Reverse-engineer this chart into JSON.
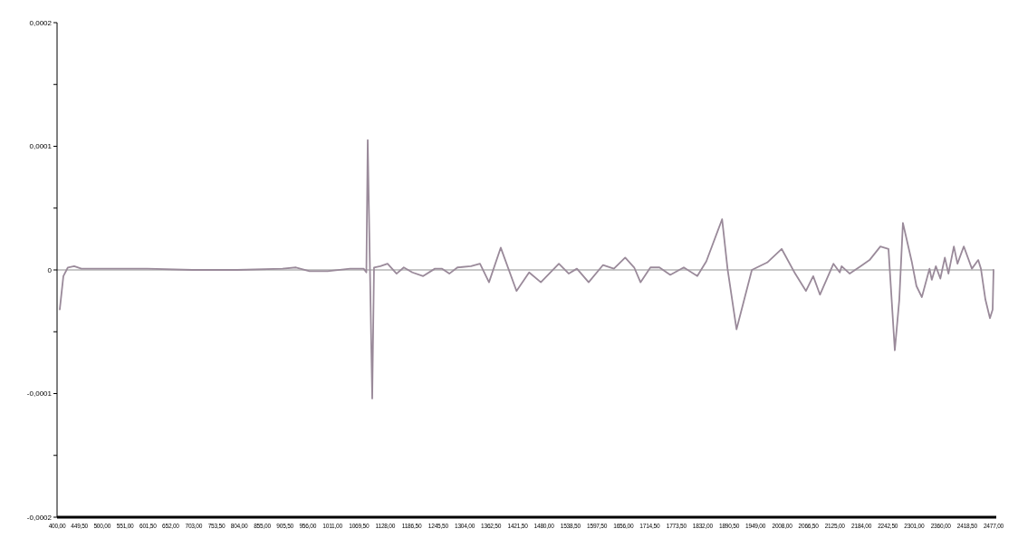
{
  "chart_data": {
    "type": "line",
    "x": [
      406,
      414,
      424,
      438,
      454,
      500,
      515,
      600,
      700,
      800,
      900,
      930,
      960,
      1000,
      1050,
      1080,
      1086,
      1089,
      1094,
      1099,
      1103,
      1117,
      1133,
      1153,
      1169,
      1188,
      1212,
      1238,
      1254,
      1270,
      1288,
      1318,
      1338,
      1358,
      1384,
      1419,
      1447,
      1473,
      1513,
      1535,
      1553,
      1579,
      1611,
      1635,
      1660,
      1680,
      1694,
      1716,
      1736,
      1760,
      1790,
      1820,
      1840,
      1875,
      1887,
      1907,
      1941,
      1975,
      2007,
      2037,
      2061,
      2077,
      2092,
      2122,
      2136,
      2140,
      2158,
      2182,
      2202,
      2226,
      2244,
      2258,
      2268,
      2276,
      2296,
      2306,
      2318,
      2335,
      2340,
      2349,
      2359,
      2369,
      2377,
      2389,
      2397,
      2411,
      2429,
      2443,
      2449,
      2459,
      2469,
      2475,
      2477
    ],
    "series": [
      {
        "color": "#9a8a9a",
        "values": [
          -3.2e-05,
          -5e-06,
          2e-06,
          3e-06,
          1e-06,
          1e-06,
          1e-06,
          1e-06,
          0,
          0,
          1e-06,
          2e-06,
          -1e-06,
          -1e-06,
          1e-06,
          1e-06,
          -2e-06,
          0.000105,
          0,
          -0.000104,
          2e-06,
          3e-06,
          5e-06,
          -3e-06,
          2e-06,
          -2e-06,
          -5e-06,
          1e-06,
          1e-06,
          -3e-06,
          2e-06,
          3e-06,
          5e-06,
          -1e-05,
          1.8e-05,
          -1.7e-05,
          -2e-06,
          -1e-05,
          5e-06,
          -3e-06,
          1e-06,
          -1e-05,
          4e-06,
          1e-06,
          1e-05,
          2e-06,
          -1e-05,
          2e-06,
          2e-06,
          -4e-06,
          2e-06,
          -5e-06,
          7e-06,
          4.1e-05,
          1e-06,
          -4.8e-05,
          0,
          6e-06,
          1.7e-05,
          -3e-06,
          -1.7e-05,
          -5e-06,
          -2e-05,
          5e-06,
          -2e-06,
          3e-06,
          -3e-06,
          3e-06,
          8e-06,
          1.9e-05,
          1.7e-05,
          -6.5e-05,
          -2.4e-05,
          3.8e-05,
          6e-06,
          -1.3e-05,
          -2.2e-05,
          1e-06,
          -8e-06,
          3e-06,
          -7e-06,
          1e-05,
          -3e-06,
          1.9e-05,
          5e-06,
          1.9e-05,
          1e-06,
          8e-06,
          1e-06,
          -2.4e-05,
          -3.9e-05,
          -3.2e-05,
          0
        ]
      }
    ],
    "xlim": [
      400,
      2477
    ],
    "xticks": [
      {
        "value": 400,
        "label": "400,00"
      },
      {
        "value": 449.5,
        "label": "449,50"
      },
      {
        "value": 500,
        "label": "500,00"
      },
      {
        "value": 551,
        "label": "551,00"
      },
      {
        "value": 601.5,
        "label": "601,50"
      },
      {
        "value": 652,
        "label": "652,00"
      },
      {
        "value": 703,
        "label": "703,00"
      },
      {
        "value": 753.5,
        "label": "753,50"
      },
      {
        "value": 804,
        "label": "804,00"
      },
      {
        "value": 855,
        "label": "855,00"
      },
      {
        "value": 905.5,
        "label": "905,50"
      },
      {
        "value": 956,
        "label": "956,00"
      },
      {
        "value": 1011,
        "label": "1011,00"
      },
      {
        "value": 1069.5,
        "label": "1069,50"
      },
      {
        "value": 1128,
        "label": "1128,00"
      },
      {
        "value": 1186.5,
        "label": "1186,50"
      },
      {
        "value": 1245.5,
        "label": "1245,50"
      },
      {
        "value": 1304,
        "label": "1304,00"
      },
      {
        "value": 1362.5,
        "label": "1362,50"
      },
      {
        "value": 1421.5,
        "label": "1421,50"
      },
      {
        "value": 1480,
        "label": "1480,00"
      },
      {
        "value": 1538.5,
        "label": "1538,50"
      },
      {
        "value": 1597.5,
        "label": "1597,50"
      },
      {
        "value": 1656,
        "label": "1656,00"
      },
      {
        "value": 1714.5,
        "label": "1714,50"
      },
      {
        "value": 1773.5,
        "label": "1773,50"
      },
      {
        "value": 1832,
        "label": "1832,00"
      },
      {
        "value": 1890.5,
        "label": "1890,50"
      },
      {
        "value": 1949,
        "label": "1949,00"
      },
      {
        "value": 2008,
        "label": "2008,00"
      },
      {
        "value": 2066.5,
        "label": "2066,50"
      },
      {
        "value": 2125,
        "label": "2125,00"
      },
      {
        "value": 2184,
        "label": "2184,00"
      },
      {
        "value": 2242.5,
        "label": "2242,50"
      },
      {
        "value": 2301,
        "label": "2301,00"
      },
      {
        "value": 2360,
        "label": "2360,00"
      },
      {
        "value": 2418.5,
        "label": "2418,50"
      },
      {
        "value": 2477,
        "label": "2477,00"
      }
    ],
    "ylim": [
      -0.0002,
      0.0002
    ],
    "yticks": [
      {
        "value": -0.0002,
        "label": "-0,0002"
      },
      {
        "value": -0.00015,
        "label": null
      },
      {
        "value": -0.0001,
        "label": "-0,0001"
      },
      {
        "value": -5e-05,
        "label": null
      },
      {
        "value": 0,
        "label": "0"
      },
      {
        "value": 5e-05,
        "label": null
      },
      {
        "value": 0.0001,
        "label": "0,0001"
      },
      {
        "value": 0.00015,
        "label": null
      },
      {
        "value": 0.0002,
        "label": "0,0002"
      }
    ],
    "ref_lines": [
      {
        "axis": "y",
        "value": 0,
        "color": "#909090"
      }
    ],
    "grid": false,
    "marker": "none",
    "line_style": "solid"
  }
}
